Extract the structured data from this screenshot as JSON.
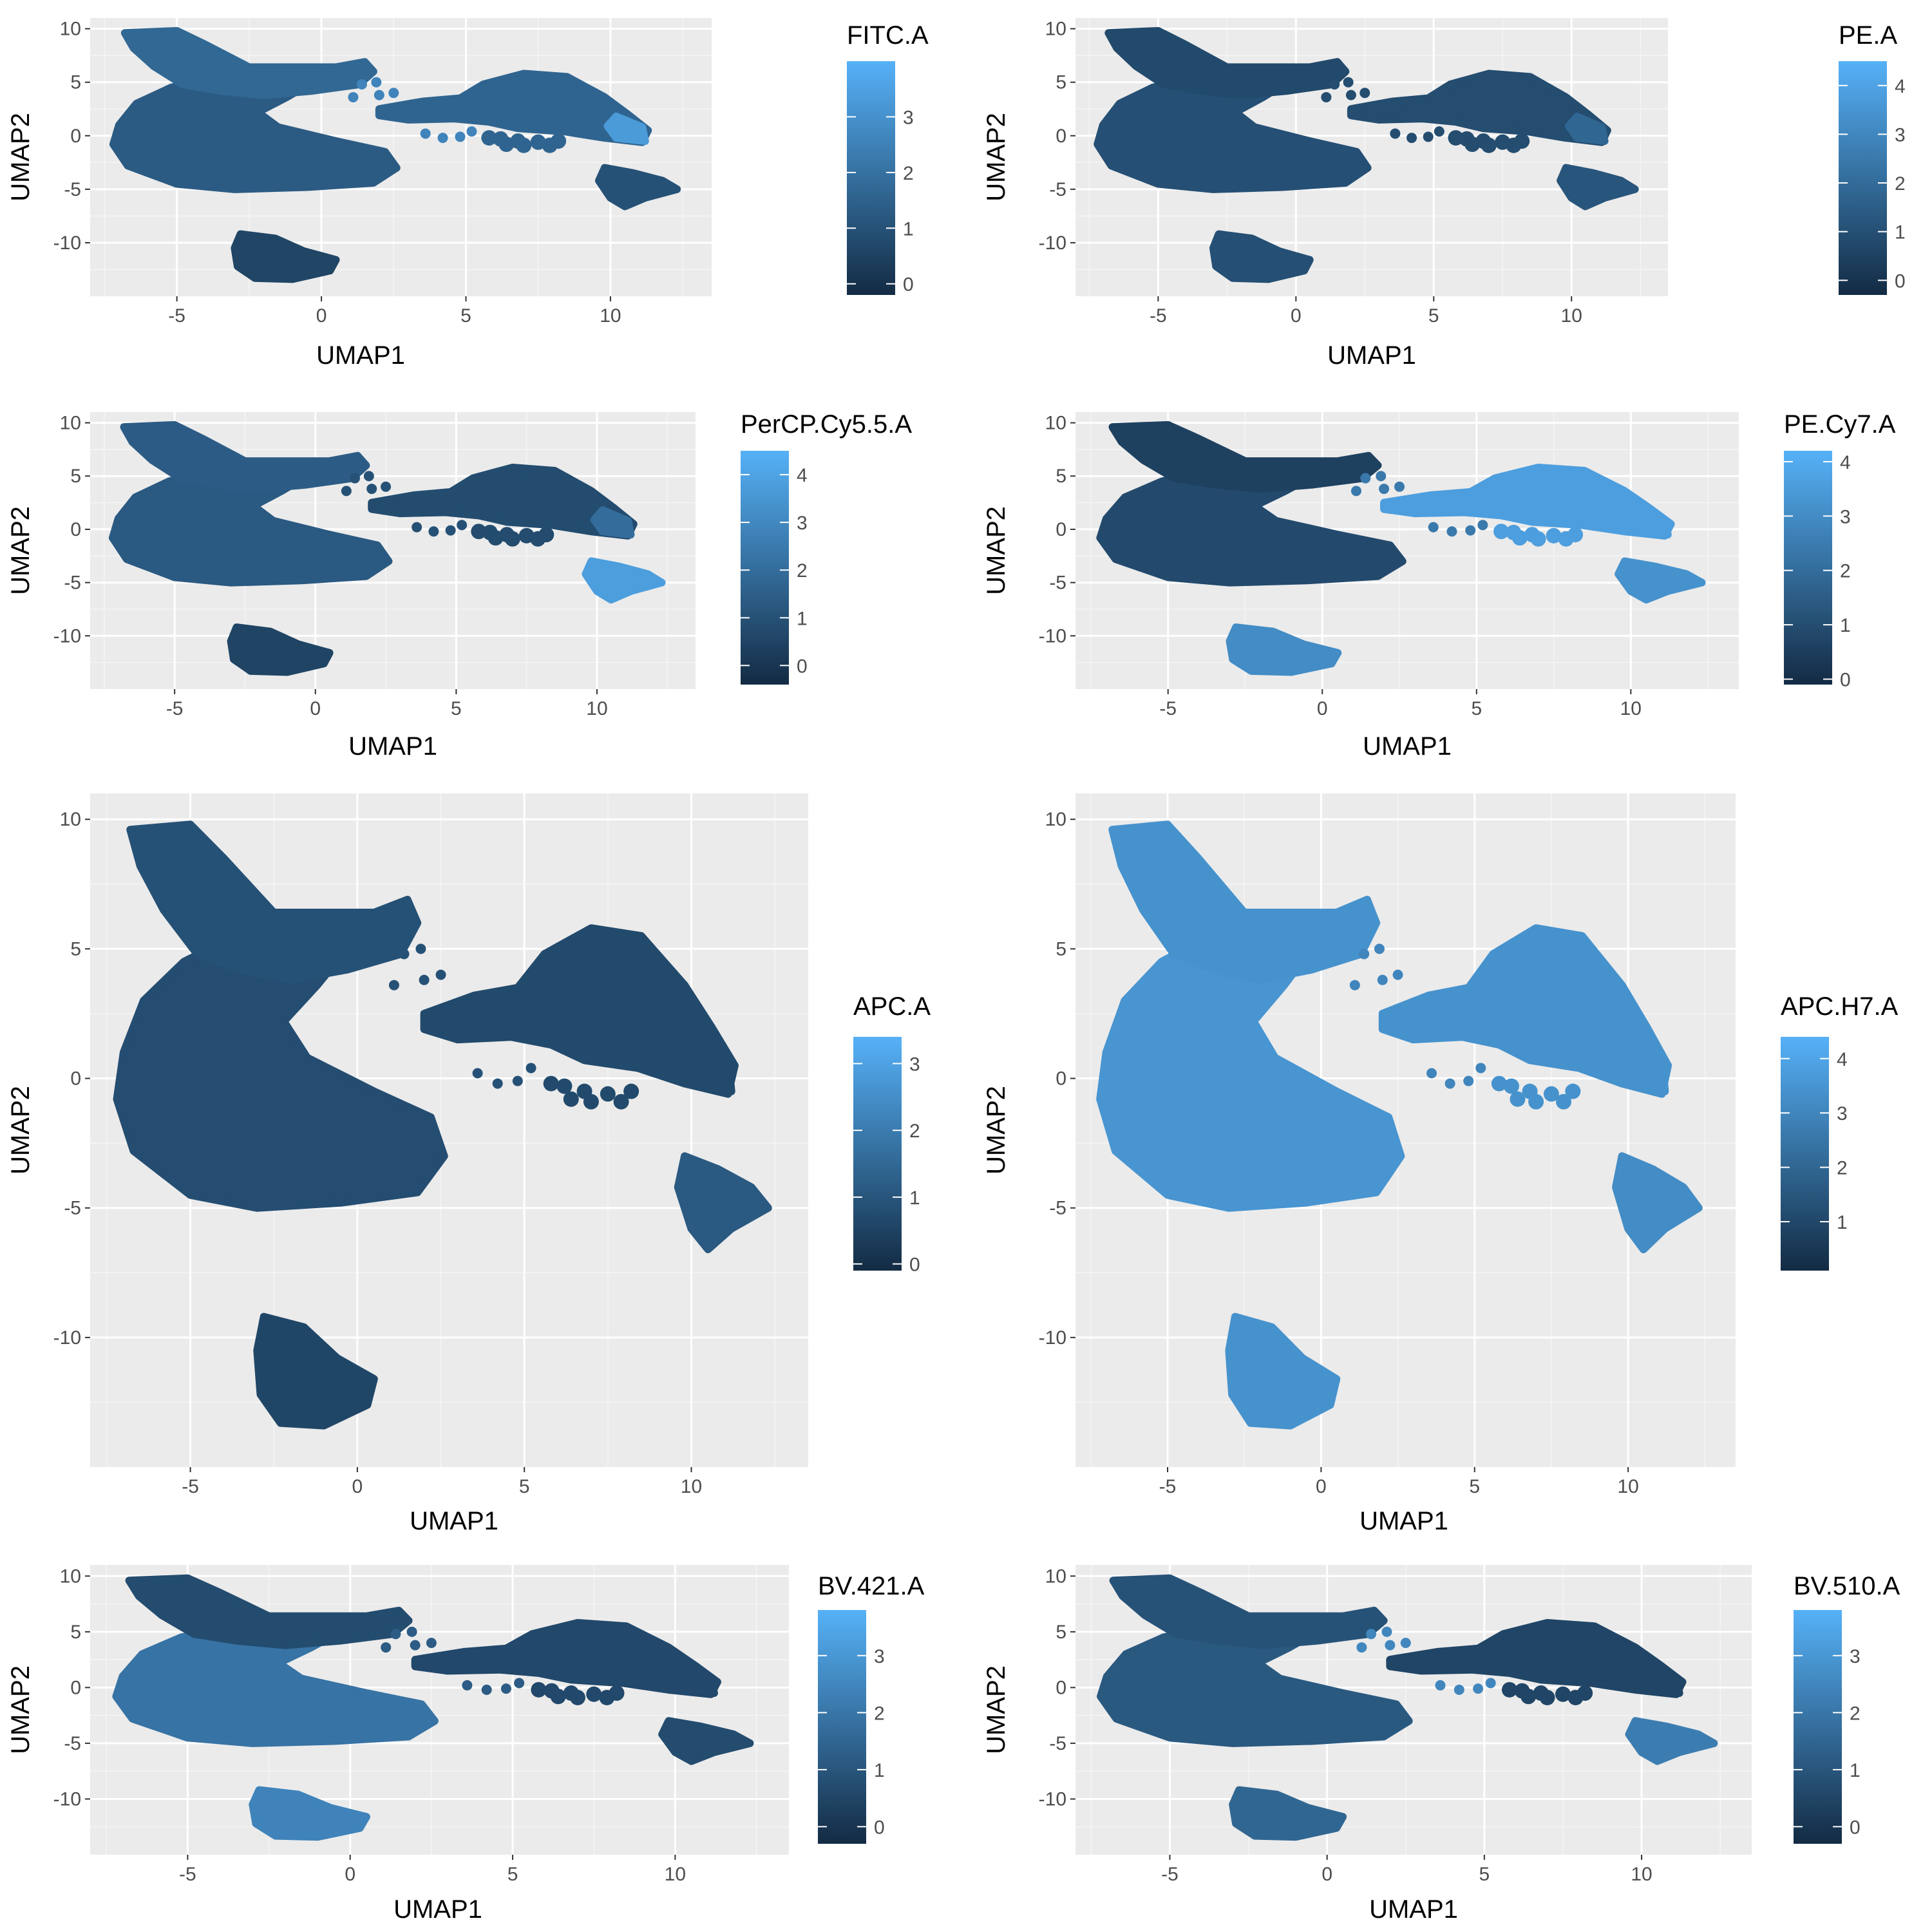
{
  "chart_data": [
    {
      "type": "scatter",
      "title": "",
      "xlabel": "UMAP1",
      "ylabel": "UMAP2",
      "xlim": [
        -8,
        13.5
      ],
      "ylim": [
        -15,
        11
      ],
      "x_ticks": [
        -5,
        0,
        5,
        10
      ],
      "y_ticks": [
        10,
        5,
        0,
        -5,
        -10
      ],
      "x_tick_labels": [
        "-5",
        "0",
        "5",
        "10"
      ],
      "y_tick_labels": [
        "10",
        "5",
        "0",
        "-5",
        "-10"
      ],
      "grid": true,
      "legend": {
        "position": "right",
        "title": "FITC.A",
        "min": -0.2,
        "max": 4.0,
        "ticks": [
          0,
          1,
          2,
          3
        ],
        "tick_labels": [
          "0",
          "1",
          "2",
          "3"
        ]
      },
      "cluster_values": {
        "left_body": 1.3,
        "left_arm": 1.7,
        "right_body": 1.6,
        "right_body_tip": 3.3,
        "small_right": 1.0,
        "bottom": 0.6,
        "bridge_dots": 2.6
      }
    },
    {
      "type": "scatter",
      "title": "",
      "xlabel": "UMAP1",
      "ylabel": "UMAP2",
      "xlim": [
        -8,
        13.5
      ],
      "ylim": [
        -15,
        11
      ],
      "x_ticks": [
        -5,
        0,
        5,
        10
      ],
      "y_ticks": [
        10,
        5,
        0,
        -5,
        -10
      ],
      "x_tick_labels": [
        "-5",
        "0",
        "5",
        "10"
      ],
      "y_tick_labels": [
        "10",
        "5",
        "0",
        "-5",
        "-10"
      ],
      "grid": true,
      "legend": {
        "position": "right",
        "title": "PE.A",
        "min": -0.3,
        "max": 4.5,
        "ticks": [
          0,
          1,
          2,
          3,
          4
        ],
        "tick_labels": [
          "0",
          "1",
          "2",
          "3",
          "4"
        ]
      },
      "cluster_values": {
        "left_body": 1.0,
        "left_arm": 0.8,
        "right_body": 0.9,
        "right_body_tip": 1.8,
        "small_right": 1.2,
        "bottom": 1.0,
        "bridge_dots": 0.9
      }
    },
    {
      "type": "scatter",
      "title": "",
      "xlabel": "UMAP1",
      "ylabel": "UMAP2",
      "xlim": [
        -8,
        13.5
      ],
      "ylim": [
        -15,
        11
      ],
      "x_ticks": [
        -5,
        0,
        5,
        10
      ],
      "y_ticks": [
        10,
        5,
        0,
        -5,
        -10
      ],
      "x_tick_labels": [
        "-5",
        "0",
        "5",
        "10"
      ],
      "y_tick_labels": [
        "10",
        "5",
        "0",
        "-5",
        "-10"
      ],
      "grid": true,
      "legend": {
        "position": "right",
        "title": "PerCP.Cy5.5.A",
        "min": -0.4,
        "max": 4.5,
        "ticks": [
          0,
          1,
          2,
          3,
          4
        ],
        "tick_labels": [
          "0",
          "1",
          "2",
          "3",
          "4"
        ]
      },
      "cluster_values": {
        "left_body": 1.3,
        "left_arm": 1.4,
        "right_body": 0.8,
        "right_body_tip": 2.0,
        "small_right": 3.8,
        "bottom": 0.5,
        "bridge_dots": 1.0
      }
    },
    {
      "type": "scatter",
      "title": "",
      "xlabel": "UMAP1",
      "ylabel": "UMAP2",
      "xlim": [
        -8,
        13.5
      ],
      "ylim": [
        -15,
        11
      ],
      "x_ticks": [
        -5,
        0,
        5,
        10
      ],
      "y_ticks": [
        10,
        5,
        0,
        -5,
        -10
      ],
      "x_tick_labels": [
        "-5",
        "0",
        "5",
        "10"
      ],
      "y_tick_labels": [
        "10",
        "5",
        "0",
        "-5",
        "-10"
      ],
      "grid": true,
      "legend": {
        "position": "right",
        "title": "PE.Cy7.A",
        "min": -0.1,
        "max": 4.2,
        "ticks": [
          0,
          1,
          2,
          3,
          4
        ],
        "tick_labels": [
          "0",
          "1",
          "2",
          "3",
          "4"
        ]
      },
      "cluster_values": {
        "left_body": 0.9,
        "left_arm": 0.6,
        "right_body": 3.6,
        "right_body_tip": 3.6,
        "small_right": 3.2,
        "bottom": 3.0,
        "bridge_dots": 2.4
      }
    },
    {
      "type": "scatter",
      "title": "",
      "xlabel": "UMAP1",
      "ylabel": "UMAP2",
      "xlim": [
        -8,
        13.5
      ],
      "ylim": [
        -15,
        11
      ],
      "x_ticks": [
        -5,
        0,
        5,
        10
      ],
      "y_ticks": [
        10,
        5,
        0,
        -5,
        -10
      ],
      "x_tick_labels": [
        "-5",
        "0",
        "5",
        "10"
      ],
      "y_tick_labels": [
        "10",
        "5",
        "0",
        "-5",
        "-10"
      ],
      "grid": true,
      "legend": {
        "position": "right",
        "title": "APC.A",
        "min": -0.1,
        "max": 3.4,
        "ticks": [
          0,
          1,
          2,
          3
        ],
        "tick_labels": [
          "0",
          "1",
          "2",
          "3"
        ]
      },
      "cluster_values": {
        "left_body": 0.8,
        "left_arm": 0.9,
        "right_body": 0.7,
        "right_body_tip": 0.7,
        "small_right": 1.1,
        "bottom": 0.6,
        "bridge_dots": 0.9
      }
    },
    {
      "type": "scatter",
      "title": "",
      "xlabel": "UMAP1",
      "ylabel": "UMAP2",
      "xlim": [
        -8,
        13.5
      ],
      "ylim": [
        -15,
        11
      ],
      "x_ticks": [
        -5,
        0,
        5,
        10
      ],
      "y_ticks": [
        10,
        5,
        0,
        -5,
        -10
      ],
      "x_tick_labels": [
        "-5",
        "0",
        "5",
        "10"
      ],
      "y_tick_labels": [
        "10",
        "5",
        "0",
        "-5",
        "-10"
      ],
      "grid": true,
      "legend": {
        "position": "right",
        "title": "APC.H7.A",
        "min": 0.1,
        "max": 4.4,
        "ticks": [
          1,
          2,
          3,
          4
        ],
        "tick_labels": [
          "1",
          "2",
          "3",
          "4"
        ]
      },
      "cluster_values": {
        "left_body": 3.5,
        "left_arm": 3.4,
        "right_body": 3.4,
        "right_body_tip": 3.4,
        "small_right": 3.2,
        "bottom": 3.4,
        "bridge_dots": 3.0
      }
    },
    {
      "type": "scatter",
      "title": "",
      "xlabel": "UMAP1",
      "ylabel": "UMAP2",
      "xlim": [
        -8,
        13.5
      ],
      "ylim": [
        -15,
        11
      ],
      "x_ticks": [
        -5,
        0,
        5,
        10
      ],
      "y_ticks": [
        10,
        5,
        0,
        -5,
        -10
      ],
      "x_tick_labels": [
        "-5",
        "0",
        "5",
        "10"
      ],
      "y_tick_labels": [
        "10",
        "5",
        "0",
        "-5",
        "-10"
      ],
      "grid": true,
      "legend": {
        "position": "right",
        "title": "BV.421.A",
        "min": -0.3,
        "max": 3.8,
        "ticks": [
          0,
          1,
          2,
          3
        ],
        "tick_labels": [
          "0",
          "1",
          "2",
          "3"
        ]
      },
      "cluster_values": {
        "left_body": 1.9,
        "left_arm": 0.7,
        "right_body": 0.6,
        "right_body_tip": 0.6,
        "small_right": 0.7,
        "bottom": 2.4,
        "bridge_dots": 1.2
      }
    },
    {
      "type": "scatter",
      "title": "",
      "xlabel": "UMAP1",
      "ylabel": "UMAP2",
      "xlim": [
        -8,
        13.5
      ],
      "ylim": [
        -15,
        11
      ],
      "x_ticks": [
        -5,
        0,
        5,
        10
      ],
      "y_ticks": [
        10,
        5,
        0,
        -5,
        -10
      ],
      "x_tick_labels": [
        "-5",
        "0",
        "5",
        "10"
      ],
      "y_tick_labels": [
        "10",
        "5",
        "0",
        "-5",
        "-10"
      ],
      "grid": true,
      "legend": {
        "position": "right",
        "title": "BV.510.A",
        "min": -0.3,
        "max": 3.8,
        "ticks": [
          0,
          1,
          2,
          3
        ],
        "tick_labels": [
          "0",
          "1",
          "2",
          "3"
        ]
      },
      "cluster_values": {
        "left_body": 1.1,
        "left_arm": 0.9,
        "right_body": 0.5,
        "right_body_tip": 0.5,
        "small_right": 2.2,
        "bottom": 1.5,
        "bridge_dots": 2.5
      }
    }
  ],
  "colors": {
    "panel_background": "#EBEBEB",
    "grid_major": "#FFFFFF",
    "axis_text": "#4D4D4D",
    "label_text": "#000000",
    "scale_low": "#132B43",
    "scale_high": "#56B1F7"
  }
}
